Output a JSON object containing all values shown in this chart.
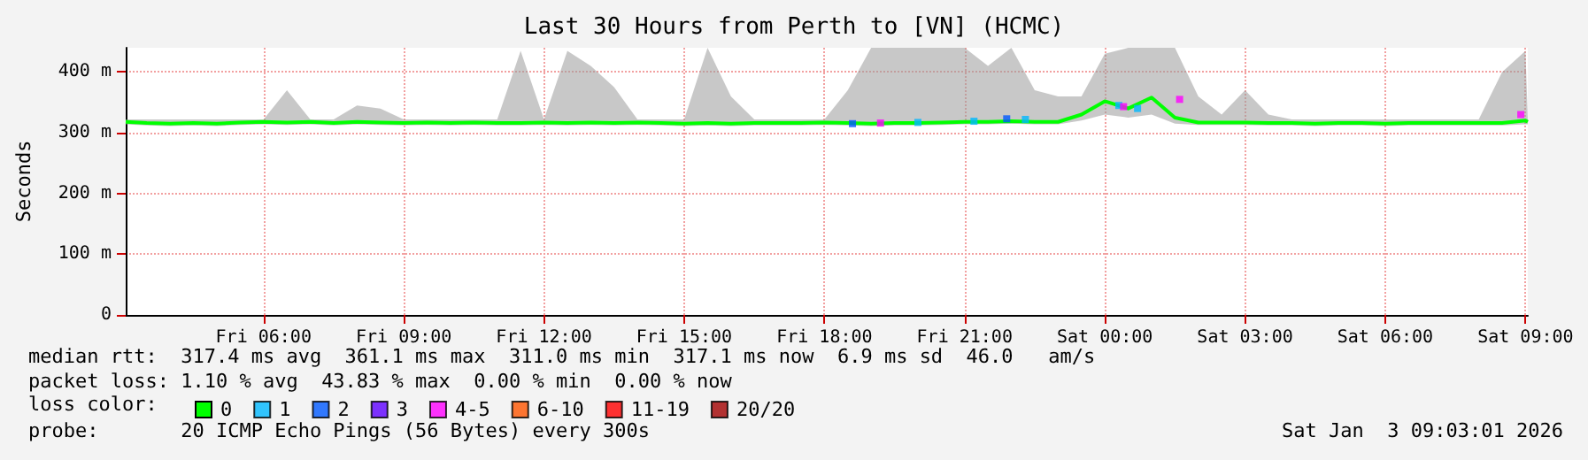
{
  "chart_data": {
    "type": "line",
    "title": "Last 30 Hours from Perth to [VN] (HCMC)",
    "ylabel": "Seconds",
    "x": [
      "2026-01-02T03:03",
      "2026-01-02T03:30",
      "2026-01-02T04:00",
      "2026-01-02T04:30",
      "2026-01-02T05:00",
      "2026-01-02T05:30",
      "2026-01-02T06:00",
      "2026-01-02T06:30",
      "2026-01-02T07:00",
      "2026-01-02T07:30",
      "2026-01-02T08:00",
      "2026-01-02T08:30",
      "2026-01-02T09:00",
      "2026-01-02T09:30",
      "2026-01-02T10:00",
      "2026-01-02T10:30",
      "2026-01-02T11:00",
      "2026-01-02T11:30",
      "2026-01-02T12:00",
      "2026-01-02T12:30",
      "2026-01-02T13:00",
      "2026-01-02T13:30",
      "2026-01-02T14:00",
      "2026-01-02T14:30",
      "2026-01-02T15:00",
      "2026-01-02T15:30",
      "2026-01-02T16:00",
      "2026-01-02T16:30",
      "2026-01-02T17:00",
      "2026-01-02T17:30",
      "2026-01-02T18:00",
      "2026-01-02T18:30",
      "2026-01-02T19:00",
      "2026-01-02T19:30",
      "2026-01-02T20:00",
      "2026-01-02T20:30",
      "2026-01-02T21:00",
      "2026-01-02T21:30",
      "2026-01-02T22:00",
      "2026-01-02T22:30",
      "2026-01-02T23:00",
      "2026-01-02T23:30",
      "2026-01-03T00:00",
      "2026-01-03T00:30",
      "2026-01-03T01:00",
      "2026-01-03T01:30",
      "2026-01-03T02:00",
      "2026-01-03T02:30",
      "2026-01-03T03:00",
      "2026-01-03T03:30",
      "2026-01-03T04:00",
      "2026-01-03T04:30",
      "2026-01-03T05:00",
      "2026-01-03T05:30",
      "2026-01-03T06:00",
      "2026-01-03T06:30",
      "2026-01-03T07:00",
      "2026-01-03T07:30",
      "2026-01-03T08:00",
      "2026-01-03T08:30",
      "2026-01-03T09:00",
      "2026-01-03T09:03"
    ],
    "xlim": [
      "2026-01-02T03:03",
      "2026-01-03T09:03"
    ],
    "xticks": [
      {
        "value": "2026-01-02T06:00",
        "label": "Fri 06:00"
      },
      {
        "value": "2026-01-02T09:00",
        "label": "Fri 09:00"
      },
      {
        "value": "2026-01-02T12:00",
        "label": "Fri 12:00"
      },
      {
        "value": "2026-01-02T15:00",
        "label": "Fri 15:00"
      },
      {
        "value": "2026-01-02T18:00",
        "label": "Fri 18:00"
      },
      {
        "value": "2026-01-02T21:00",
        "label": "Fri 21:00"
      },
      {
        "value": "2026-01-03T00:00",
        "label": "Sat 00:00"
      },
      {
        "value": "2026-01-03T03:00",
        "label": "Sat 03:00"
      },
      {
        "value": "2026-01-03T06:00",
        "label": "Sat 06:00"
      },
      {
        "value": "2026-01-03T09:00",
        "label": "Sat 09:00"
      }
    ],
    "ylim": [
      0,
      440
    ],
    "yticks": [
      0,
      {
        "value": 100,
        "label": "100 m"
      },
      {
        "value": 200,
        "label": "200 m"
      },
      {
        "value": 300,
        "label": "300 m"
      },
      {
        "value": 400,
        "label": "400 m"
      }
    ],
    "series": [
      {
        "name": "0",
        "color": "#00ff00",
        "values": [
          318,
          316,
          315,
          316,
          315,
          317,
          318,
          317,
          318,
          316,
          318,
          317,
          316,
          317,
          316,
          317,
          316,
          316,
          317,
          316,
          317,
          316,
          317,
          316,
          315,
          316,
          315,
          316,
          316,
          316,
          317,
          316,
          315,
          316,
          316,
          317,
          318,
          318,
          319,
          318,
          318,
          330,
          352,
          340,
          358,
          325,
          317,
          317,
          317,
          316,
          316,
          315,
          316,
          316,
          315,
          316,
          316,
          316,
          316,
          316,
          320,
          318
        ],
        "lower": [
          314,
          312,
          311,
          312,
          311,
          313,
          314,
          313,
          314,
          312,
          314,
          313,
          312,
          313,
          312,
          313,
          312,
          312,
          313,
          312,
          313,
          312,
          313,
          312,
          311,
          312,
          311,
          312,
          312,
          312,
          313,
          312,
          311,
          312,
          312,
          313,
          314,
          314,
          315,
          314,
          314,
          320,
          330,
          325,
          330,
          315,
          313,
          313,
          313,
          312,
          312,
          311,
          312,
          312,
          311,
          312,
          312,
          312,
          312,
          312,
          314,
          314
        ],
        "upper": [
          322,
          322,
          322,
          322,
          322,
          322,
          322,
          370,
          322,
          322,
          345,
          340,
          322,
          322,
          322,
          322,
          322,
          435,
          322,
          435,
          410,
          375,
          322,
          322,
          322,
          440,
          360,
          322,
          322,
          322,
          322,
          370,
          440,
          440,
          440,
          440,
          440,
          410,
          440,
          370,
          360,
          360,
          430,
          440,
          440,
          440,
          360,
          330,
          370,
          330,
          322,
          322,
          322,
          322,
          322,
          322,
          322,
          322,
          322,
          400,
          435,
          322
        ]
      },
      {
        "name": "1",
        "color": "#00b8ff",
        "type": "scatter",
        "marker": "square",
        "x": [
          "2026-01-02T20:00",
          "2026-01-02T21:12",
          "2026-01-02T22:18",
          "2026-01-03T00:18",
          "2026-01-03T00:42"
        ],
        "values": [
          317,
          319,
          322,
          345,
          340
        ]
      },
      {
        "name": "2",
        "color": "#0059ff",
        "type": "scatter",
        "marker": "square",
        "x": [
          "2026-01-02T18:36",
          "2026-01-02T21:54"
        ],
        "values": [
          315,
          323
        ]
      },
      {
        "name": "3",
        "color": "#5e00ff",
        "type": "scatter",
        "marker": "square",
        "values": [
          null,
          null,
          null,
          null,
          null,
          null,
          null,
          null,
          null,
          null,
          null,
          null,
          null,
          null,
          null,
          null,
          null,
          null,
          null,
          null,
          null,
          null,
          null,
          null,
          null,
          null,
          null,
          null,
          null,
          null,
          null,
          null,
          null,
          null,
          null,
          null,
          null,
          null,
          null,
          null,
          null,
          null,
          null,
          null,
          null,
          null,
          null,
          null,
          null,
          null,
          null,
          null,
          null,
          null,
          null,
          null,
          null,
          null,
          null,
          null,
          null,
          null
        ]
      },
      {
        "name": "4-5",
        "color": "#ff00ff",
        "type": "scatter",
        "marker": "square",
        "x": [
          "2026-01-02T19:12",
          "2026-01-03T00:24",
          "2026-01-03T01:36",
          "2026-01-03T08:54"
        ],
        "values": [
          316,
          343,
          355,
          330
        ]
      },
      {
        "name": "6-10",
        "color": "#ff5500",
        "type": "scatter",
        "marker": "square",
        "values": [
          null,
          null,
          null,
          null,
          null,
          null,
          null,
          null,
          null,
          null,
          null,
          null,
          null,
          null,
          null,
          null,
          null,
          null,
          null,
          null,
          null,
          null,
          null,
          null,
          null,
          null,
          null,
          null,
          null,
          null,
          null,
          null,
          null,
          null,
          null,
          null,
          null,
          null,
          null,
          null,
          null,
          null,
          null,
          null,
          null,
          null,
          null,
          null,
          null,
          null,
          null,
          null,
          null,
          null,
          null,
          null,
          null,
          null,
          null,
          null,
          null,
          null
        ]
      },
      {
        "name": "11-19",
        "color": "#ff0000",
        "type": "scatter",
        "marker": "square",
        "values": [
          null,
          null,
          null,
          null,
          null,
          null,
          null,
          null,
          null,
          null,
          null,
          null,
          null,
          null,
          null,
          null,
          null,
          null,
          null,
          null,
          null,
          null,
          null,
          null,
          null,
          null,
          null,
          null,
          null,
          null,
          null,
          null,
          null,
          null,
          null,
          null,
          null,
          null,
          null,
          null,
          null,
          null,
          null,
          null,
          null,
          null,
          null,
          null,
          null,
          null,
          null,
          null,
          null,
          null,
          null,
          null,
          null,
          null,
          null,
          null,
          null,
          null
        ]
      },
      {
        "name": "20/20",
        "color": "#a10000",
        "type": "scatter",
        "marker": "square",
        "values": [
          null,
          null,
          null,
          null,
          null,
          null,
          null,
          null,
          null,
          null,
          null,
          null,
          null,
          null,
          null,
          null,
          null,
          null,
          null,
          null,
          null,
          null,
          null,
          null,
          null,
          null,
          null,
          null,
          null,
          null,
          null,
          null,
          null,
          null,
          null,
          null,
          null,
          null,
          null,
          null,
          null,
          null,
          null,
          null,
          null,
          null,
          null,
          null,
          null,
          null,
          null,
          null,
          null,
          null,
          null,
          null,
          null,
          null,
          null,
          null,
          null,
          null
        ]
      }
    ],
    "legend": "bottom",
    "legend_title": "loss color:",
    "grid": true,
    "annotations": [
      "median rtt:  317.4 ms avg  361.1 ms max  311.0 ms min  317.1 ms now  6.9 ms sd  46.0   am/s",
      "packet loss: 1.10 % avg  43.83 % max  0.00 % min  0.00 % now",
      "probe:       20 ICMP Echo Pings (56 Bytes) every 300s",
      "Sat Jan  3 09:03:01 2026"
    ]
  }
}
